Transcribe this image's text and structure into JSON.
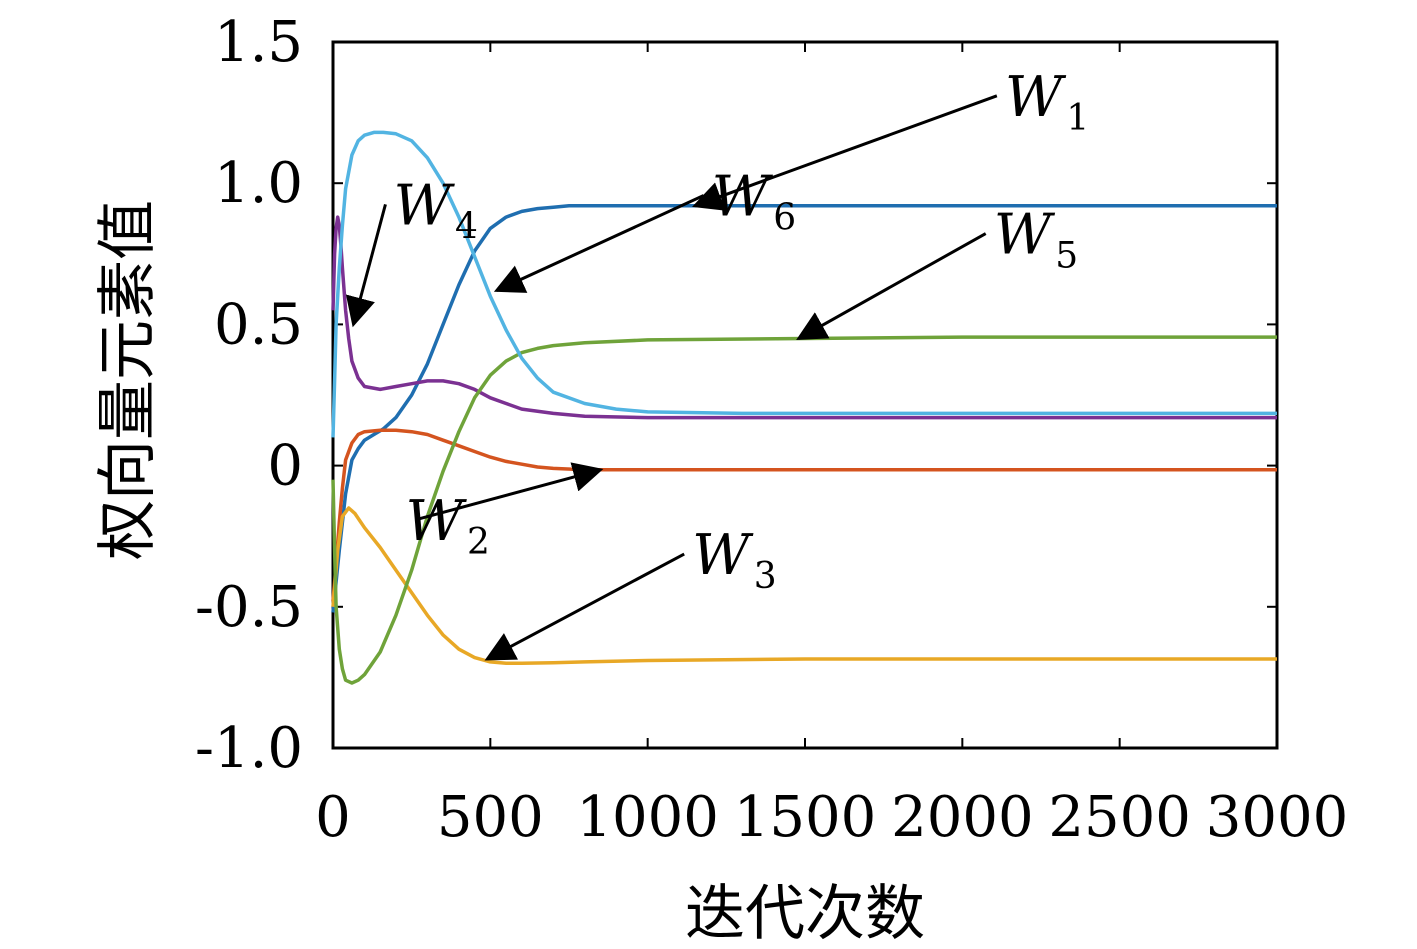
{
  "chart_data": {
    "type": "line",
    "xlabel": "迭代次数",
    "ylabel": "权向量元素值",
    "xlim": [
      0,
      3000
    ],
    "ylim": [
      -1.0,
      1.5
    ],
    "xticks": [
      0,
      500,
      1000,
      1500,
      2000,
      2500,
      3000
    ],
    "xtick_labels": [
      "0",
      "500",
      "1000",
      "1500",
      "2000",
      "2500",
      "3000"
    ],
    "yticks": [
      1.5,
      1.0,
      0.5,
      0,
      -0.5,
      -1.0
    ],
    "ytick_labels": [
      "1.5",
      "1.0",
      "0.5",
      "0",
      "-0.5",
      "-1.0"
    ],
    "grid": false,
    "series": [
      {
        "name": "W1",
        "color": "#1f6eb0",
        "x": [
          0,
          20,
          40,
          60,
          80,
          100,
          130,
          160,
          200,
          250,
          300,
          350,
          400,
          450,
          500,
          550,
          600,
          650,
          700,
          750,
          800,
          1000,
          1500,
          2000,
          2500,
          3000
        ],
        "y": [
          -0.52,
          -0.3,
          -0.1,
          0.02,
          0.06,
          0.09,
          0.11,
          0.13,
          0.17,
          0.25,
          0.36,
          0.5,
          0.64,
          0.76,
          0.84,
          0.88,
          0.9,
          0.91,
          0.915,
          0.92,
          0.92,
          0.92,
          0.92,
          0.92,
          0.92,
          0.92
        ]
      },
      {
        "name": "W2",
        "color": "#d4541f",
        "x": [
          0,
          10,
          20,
          30,
          40,
          60,
          80,
          100,
          150,
          200,
          250,
          300,
          350,
          400,
          450,
          500,
          550,
          600,
          650,
          700,
          800,
          1000,
          1500,
          2000,
          2500,
          3000
        ],
        "y": [
          -0.48,
          -0.35,
          -0.2,
          -0.08,
          0.02,
          0.08,
          0.11,
          0.12,
          0.125,
          0.125,
          0.12,
          0.11,
          0.09,
          0.07,
          0.05,
          0.03,
          0.015,
          0.005,
          -0.005,
          -0.01,
          -0.015,
          -0.015,
          -0.015,
          -0.015,
          -0.015,
          -0.015
        ]
      },
      {
        "name": "W3",
        "color": "#e8a826",
        "x": [
          0,
          15,
          30,
          50,
          70,
          100,
          150,
          200,
          250,
          300,
          350,
          400,
          450,
          500,
          550,
          600,
          700,
          800,
          1000,
          1500,
          2000,
          2500,
          3000
        ],
        "y": [
          -0.5,
          -0.3,
          -0.18,
          -0.15,
          -0.17,
          -0.22,
          -0.29,
          -0.37,
          -0.45,
          -0.53,
          -0.6,
          -0.65,
          -0.68,
          -0.695,
          -0.7,
          -0.7,
          -0.698,
          -0.695,
          -0.69,
          -0.685,
          -0.685,
          -0.685,
          -0.685
        ]
      },
      {
        "name": "W4",
        "color": "#7b3192",
        "x": [
          0,
          5,
          10,
          15,
          20,
          25,
          30,
          40,
          50,
          60,
          80,
          100,
          150,
          200,
          250,
          300,
          350,
          400,
          450,
          500,
          550,
          600,
          700,
          800,
          1000,
          1500,
          2000,
          2500,
          3000
        ],
        "y": [
          0.55,
          0.75,
          0.84,
          0.88,
          0.85,
          0.78,
          0.7,
          0.55,
          0.45,
          0.37,
          0.31,
          0.28,
          0.27,
          0.28,
          0.29,
          0.3,
          0.3,
          0.29,
          0.27,
          0.24,
          0.22,
          0.2,
          0.185,
          0.175,
          0.17,
          0.17,
          0.17,
          0.17,
          0.17
        ]
      },
      {
        "name": "W5",
        "color": "#6fa33a",
        "x": [
          0,
          5,
          10,
          20,
          30,
          40,
          60,
          80,
          100,
          150,
          200,
          250,
          300,
          350,
          400,
          450,
          500,
          550,
          600,
          650,
          700,
          800,
          1000,
          1500,
          2000,
          2500,
          3000
        ],
        "y": [
          -0.05,
          -0.3,
          -0.5,
          -0.65,
          -0.72,
          -0.76,
          -0.77,
          -0.76,
          -0.74,
          -0.66,
          -0.53,
          -0.37,
          -0.18,
          -0.02,
          0.12,
          0.24,
          0.32,
          0.37,
          0.4,
          0.415,
          0.425,
          0.435,
          0.445,
          0.45,
          0.455,
          0.455,
          0.455
        ]
      },
      {
        "name": "W6",
        "color": "#52b4e2",
        "x": [
          0,
          5,
          10,
          20,
          30,
          40,
          60,
          80,
          100,
          130,
          160,
          200,
          250,
          300,
          350,
          400,
          450,
          500,
          550,
          600,
          650,
          700,
          800,
          900,
          1000,
          1300,
          1500,
          2000,
          2500,
          3000
        ],
        "y": [
          0.1,
          0.3,
          0.5,
          0.7,
          0.85,
          0.98,
          1.1,
          1.15,
          1.17,
          1.18,
          1.18,
          1.175,
          1.15,
          1.09,
          1.0,
          0.88,
          0.74,
          0.6,
          0.48,
          0.38,
          0.31,
          0.26,
          0.22,
          0.2,
          0.19,
          0.185,
          0.185,
          0.185,
          0.185,
          0.185
        ]
      }
    ],
    "annotations": [
      {
        "label": "W",
        "sub": "1",
        "target": [
          1150,
          0.92
        ]
      },
      {
        "label": "W",
        "sub": "2",
        "target": [
          850,
          -0.015
        ]
      },
      {
        "label": "W",
        "sub": "3",
        "target": [
          490,
          -0.685
        ]
      },
      {
        "label": "W",
        "sub": "4",
        "target": [
          65,
          0.5
        ]
      },
      {
        "label": "W",
        "sub": "5",
        "target": [
          1480,
          0.45
        ]
      },
      {
        "label": "W",
        "sub": "6",
        "target": [
          520,
          0.62
        ]
      }
    ]
  }
}
